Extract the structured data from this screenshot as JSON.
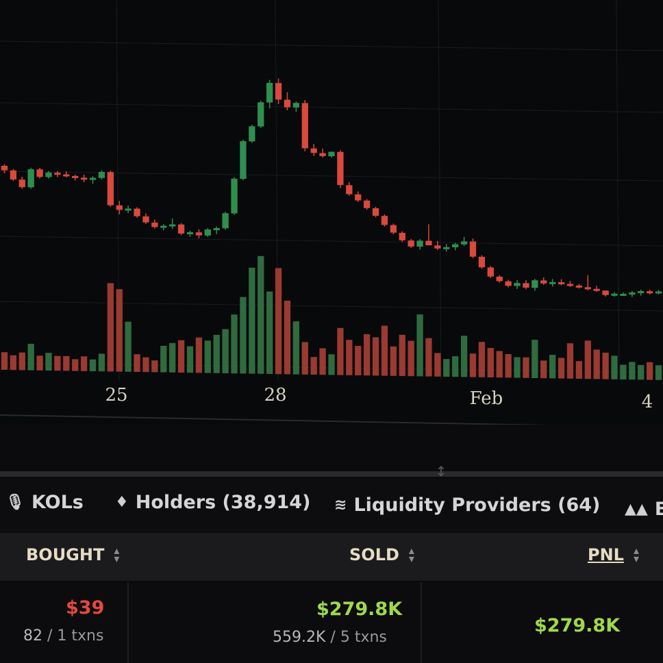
{
  "chart_data": {
    "type": "candlestick",
    "xlabels": [
      "25",
      "28",
      "Feb",
      "4"
    ],
    "colors": {
      "up": "#2e8f4e",
      "down": "#d9493d",
      "up_vol": "#2f6b3f",
      "down_vol": "#9a3a30",
      "grid": "#1a1c22"
    },
    "candles": [
      [
        0.8,
        0.82,
        0.7,
        0.74
      ],
      [
        0.74,
        0.76,
        0.6,
        0.62
      ],
      [
        0.62,
        0.66,
        0.5,
        0.52
      ],
      [
        0.52,
        0.78,
        0.5,
        0.76
      ],
      [
        0.76,
        0.78,
        0.64,
        0.66
      ],
      [
        0.66,
        0.74,
        0.64,
        0.72
      ],
      [
        0.72,
        0.74,
        0.66,
        0.7
      ],
      [
        0.7,
        0.74,
        0.66,
        0.68
      ],
      [
        0.68,
        0.7,
        0.62,
        0.66
      ],
      [
        0.66,
        0.7,
        0.6,
        0.64
      ],
      [
        0.64,
        0.68,
        0.58,
        0.66
      ],
      [
        0.66,
        0.76,
        0.64,
        0.74
      ],
      [
        0.74,
        0.76,
        0.28,
        0.3
      ],
      [
        0.3,
        0.36,
        0.18,
        0.24
      ],
      [
        0.24,
        0.3,
        0.2,
        0.26
      ],
      [
        0.26,
        0.28,
        0.14,
        0.16
      ],
      [
        0.16,
        0.2,
        0.06,
        0.08
      ],
      [
        0.08,
        0.12,
        0.0,
        0.02
      ],
      [
        0.02,
        0.06,
        -0.02,
        0.04
      ],
      [
        0.04,
        0.14,
        0.0,
        0.06
      ],
      [
        0.06,
        0.08,
        -0.08,
        -0.06
      ],
      [
        -0.06,
        -0.02,
        -0.1,
        -0.04
      ],
      [
        -0.04,
        0.0,
        -0.12,
        -0.08
      ],
      [
        -0.08,
        0.02,
        -0.1,
        0.0
      ],
      [
        0.0,
        0.04,
        -0.06,
        0.02
      ],
      [
        0.02,
        0.24,
        0.0,
        0.22
      ],
      [
        0.22,
        0.7,
        0.2,
        0.68
      ],
      [
        0.68,
        1.2,
        0.66,
        1.18
      ],
      [
        1.18,
        1.4,
        1.16,
        1.38
      ],
      [
        1.38,
        1.72,
        1.36,
        1.7
      ],
      [
        1.7,
        2.0,
        1.62,
        1.96
      ],
      [
        1.96,
        2.02,
        1.68,
        1.74
      ],
      [
        1.74,
        1.84,
        1.6,
        1.64
      ],
      [
        1.64,
        1.72,
        1.58,
        1.7
      ],
      [
        1.7,
        1.74,
        1.06,
        1.1
      ],
      [
        1.1,
        1.16,
        1.0,
        1.04
      ],
      [
        1.04,
        1.1,
        0.98,
        1.0
      ],
      [
        1.0,
        1.06,
        0.98,
        1.06
      ],
      [
        1.06,
        1.08,
        0.58,
        0.62
      ],
      [
        0.62,
        0.66,
        0.48,
        0.5
      ],
      [
        0.5,
        0.54,
        0.4,
        0.42
      ],
      [
        0.42,
        0.44,
        0.3,
        0.32
      ],
      [
        0.32,
        0.34,
        0.2,
        0.22
      ],
      [
        0.22,
        0.24,
        0.08,
        0.1
      ],
      [
        0.1,
        0.12,
        -0.02,
        0.0
      ],
      [
        0.0,
        0.02,
        -0.12,
        -0.1
      ],
      [
        -0.1,
        -0.08,
        -0.2,
        -0.18
      ],
      [
        -0.18,
        -0.08,
        -0.22,
        -0.1
      ],
      [
        -0.1,
        0.12,
        -0.14,
        -0.16
      ],
      [
        -0.16,
        -0.1,
        -0.22,
        -0.2
      ],
      [
        -0.2,
        -0.14,
        -0.24,
        -0.18
      ],
      [
        -0.18,
        -0.12,
        -0.22,
        -0.14
      ],
      [
        -0.14,
        -0.04,
        -0.16,
        -0.1
      ],
      [
        -0.1,
        -0.06,
        -0.32,
        -0.3
      ],
      [
        -0.3,
        -0.28,
        -0.46,
        -0.44
      ],
      [
        -0.44,
        -0.42,
        -0.58,
        -0.56
      ],
      [
        -0.56,
        -0.54,
        -0.64,
        -0.62
      ],
      [
        -0.62,
        -0.6,
        -0.7,
        -0.68
      ],
      [
        -0.68,
        -0.6,
        -0.72,
        -0.64
      ],
      [
        -0.64,
        -0.6,
        -0.72,
        -0.7
      ],
      [
        -0.7,
        -0.58,
        -0.74,
        -0.6
      ],
      [
        -0.6,
        -0.56,
        -0.66,
        -0.64
      ],
      [
        -0.64,
        -0.58,
        -0.68,
        -0.62
      ],
      [
        -0.62,
        -0.58,
        -0.66,
        -0.64
      ],
      [
        -0.64,
        -0.6,
        -0.68,
        -0.66
      ],
      [
        -0.66,
        -0.64,
        -0.7,
        -0.68
      ],
      [
        -0.68,
        -0.52,
        -0.72,
        -0.7
      ],
      [
        -0.7,
        -0.66,
        -0.74,
        -0.72
      ],
      [
        -0.72,
        -0.74,
        -0.8,
        -0.78
      ],
      [
        -0.78,
        -0.74,
        -0.8,
        -0.76
      ],
      [
        -0.76,
        -0.74,
        -0.78,
        -0.76
      ],
      [
        -0.76,
        -0.72,
        -0.8,
        -0.74
      ],
      [
        -0.74,
        -0.7,
        -0.78,
        -0.72
      ],
      [
        -0.72,
        -0.7,
        -0.76,
        -0.74
      ],
      [
        -0.74,
        -0.7,
        -0.76,
        -0.72
      ]
    ],
    "volumes": [
      6,
      5,
      6,
      9,
      5,
      6,
      5,
      5,
      4,
      5,
      4,
      6,
      30,
      28,
      17,
      6,
      5,
      4,
      9,
      10,
      11,
      9,
      12,
      11,
      13,
      15,
      20,
      26,
      36,
      40,
      28,
      36,
      25,
      18,
      11,
      6,
      9,
      7,
      16,
      12,
      10,
      14,
      13,
      17,
      10,
      14,
      12,
      21,
      13,
      8,
      6,
      7,
      14,
      8,
      12,
      10,
      9,
      8,
      7,
      7,
      13,
      6,
      8,
      7,
      12,
      6,
      13,
      10,
      9,
      8,
      5,
      6,
      5,
      6,
      5
    ]
  },
  "divider_icon": "updown-arrows-icon",
  "tabs": [
    {
      "icon": "microphone-icon",
      "label": "KOLs"
    },
    {
      "icon": "diamond-icon",
      "label": "Holders (38,914)"
    },
    {
      "icon": "waves-icon",
      "label": "Liquidity Providers (64)"
    },
    {
      "icon": "bars-icon",
      "label": "B"
    }
  ],
  "table": {
    "headers": {
      "bought": "BOUGHT",
      "sold": "SOLD",
      "pnl": "PNL"
    },
    "row": {
      "bought_value": "$39",
      "bought_amount": "82",
      "bought_txns": "1 txns",
      "sold_value": "$279.8K",
      "sold_amount": "559.2K",
      "sold_txns": "5 txns",
      "pnl_value": "$279.8K"
    },
    "colors": {
      "negative": "#e5493a",
      "positive": "#9fd94a"
    }
  }
}
